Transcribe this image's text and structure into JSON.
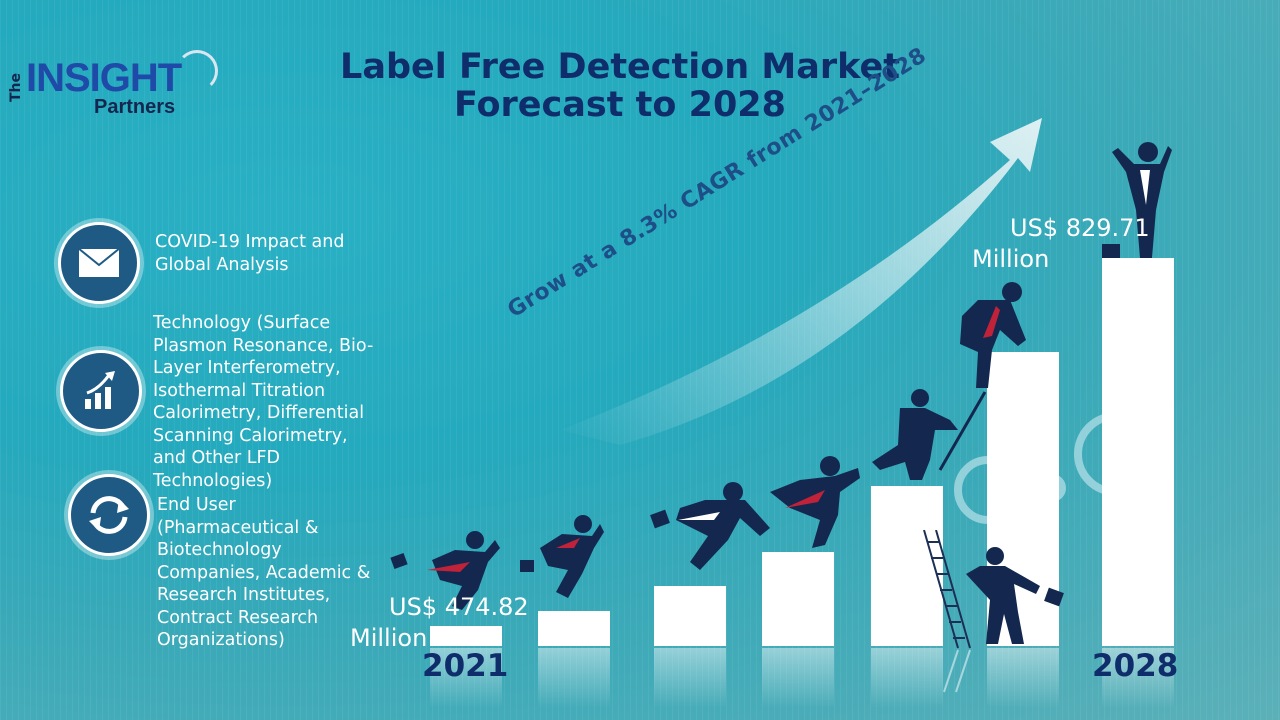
{
  "logo": {
    "the": "The",
    "brand": "INSIGHT",
    "sub": "Partners"
  },
  "title": {
    "line1": "Label Free Detection Market",
    "line2": "Forecast to 2028"
  },
  "features": [
    {
      "icon": "envelope-icon",
      "text": "COVID-19 Impact and Global Analysis"
    },
    {
      "icon": "growth-chart-icon",
      "text": "Technology (Surface Plasmon Resonance, Bio-Layer Interferometry, Isothermal Titration Calorimetry, Differential Scanning Calorimetry, and Other LFD Technologies)"
    },
    {
      "icon": "exchange-arrows-icon",
      "text": "End User (Pharmaceutical & Biotechnology Companies, Academic & Research Institutes, Contract Research Organizations)"
    }
  ],
  "cagr": "Grow at a 8.3% CAGR from 2021–2028",
  "start": {
    "value_line1": "US$ 474.82",
    "value_line2": "Million",
    "year": "2021"
  },
  "end": {
    "value_line1": "US$ 829.71",
    "value_line2": "Million",
    "year": "2028"
  },
  "chart_data": {
    "type": "bar",
    "bars_relative_height": [
      0.06,
      0.09,
      0.15,
      0.24,
      0.41,
      0.76,
      1.0
    ],
    "first_value": "US$ 474.82 Million",
    "last_value": "US$ 829.71 Million"
  },
  "colors": {
    "title": "#0f2d6b",
    "icon_bg": "#1f5a85",
    "bar": "#ffffff",
    "arrow": "#dff0f3"
  }
}
